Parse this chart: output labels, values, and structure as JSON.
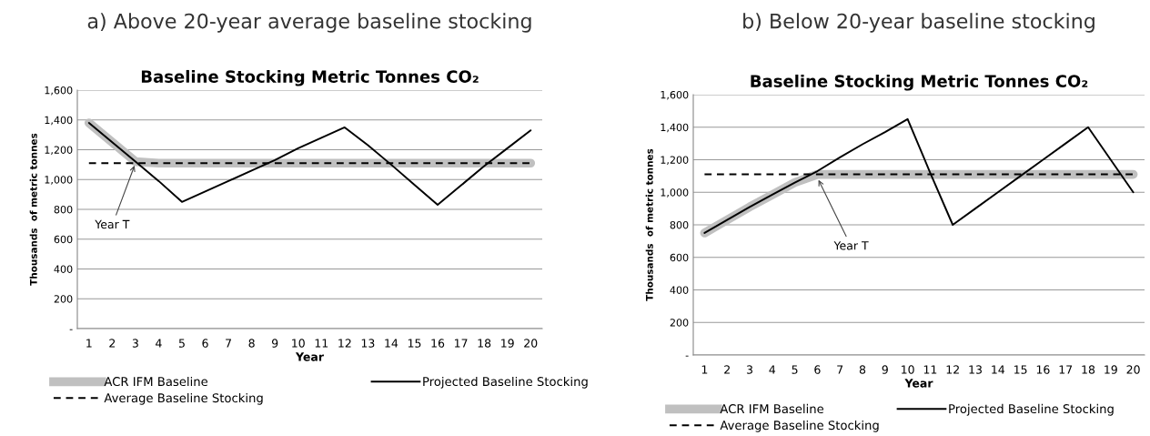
{
  "chart_data": [
    {
      "type": "line",
      "title": "a) Above 20-year average baseline stocking",
      "subtitle": "Baseline Stocking Metric Tonnes CO₂",
      "xlabel": "Year",
      "ylabel": "Thousands  of metric tonnes",
      "categories": [
        "1",
        "2",
        "3",
        "4",
        "5",
        "6",
        "7",
        "8",
        "9",
        "10",
        "11",
        "12",
        "13",
        "14",
        "15",
        "16",
        "17",
        "18",
        "19",
        "20"
      ],
      "series": [
        {
          "name": "ACR IFM Baseline",
          "color": "#c0c0c0",
          "line_style": "solid",
          "values": [
            1380,
            1250,
            1120,
            1110,
            1110,
            1110,
            1110,
            1110,
            1110,
            1110,
            1110,
            1110,
            1110,
            1110,
            1110,
            1110,
            1110,
            1110,
            1110,
            1110
          ]
        },
        {
          "name": "Projected Baseline Stocking",
          "color": "#000000",
          "line_style": "solid",
          "values": [
            1380,
            1250,
            1120,
            990,
            850,
            920,
            990,
            1060,
            1130,
            1210,
            1280,
            1350,
            1230,
            1100,
            965,
            830,
            960,
            1090,
            1210,
            1330
          ]
        },
        {
          "name": "Average Baseline Stocking",
          "color": "#000000",
          "line_style": "dashed",
          "values": [
            1110,
            1110,
            1110,
            1110,
            1110,
            1110,
            1110,
            1110,
            1110,
            1110,
            1110,
            1110,
            1110,
            1110,
            1110,
            1110,
            1110,
            1110,
            1110,
            1110
          ]
        }
      ],
      "ylim": [
        0,
        1600
      ],
      "yticks": [
        {
          "value": 0,
          "label": "-"
        },
        200,
        400,
        600,
        800,
        {
          "value": 1000,
          "label": "1,000"
        },
        {
          "value": 1200,
          "label": "1,200"
        },
        {
          "value": 1400,
          "label": "1,400"
        },
        {
          "value": 1600,
          "label": "1,600"
        }
      ],
      "grid": "y",
      "legend": "bottom",
      "marker": "none",
      "annotations": [
        {
          "text": "Year T",
          "x": "3",
          "y": 1110
        }
      ]
    },
    {
      "type": "line",
      "title": "b) Below 20-year baseline stocking",
      "subtitle": "Baseline Stocking Metric Tonnes CO₂",
      "xlabel": "Year",
      "ylabel": "Thousands  of metric tonnes",
      "categories": [
        "1",
        "2",
        "3",
        "4",
        "5",
        "6",
        "7",
        "8",
        "9",
        "10",
        "11",
        "12",
        "13",
        "14",
        "15",
        "16",
        "17",
        "18",
        "19",
        "20"
      ],
      "series": [
        {
          "name": "ACR IFM Baseline",
          "color": "#c0c0c0",
          "line_style": "solid",
          "values": [
            750,
            830,
            910,
            985,
            1060,
            1110,
            1110,
            1110,
            1110,
            1110,
            1110,
            1110,
            1110,
            1110,
            1110,
            1110,
            1110,
            1110,
            1110,
            1110
          ]
        },
        {
          "name": "Projected Baseline Stocking",
          "color": "#000000",
          "line_style": "solid",
          "values": [
            750,
            830,
            910,
            985,
            1060,
            1130,
            1215,
            1295,
            1370,
            1450,
            1120,
            800,
            900,
            1000,
            1100,
            1200,
            1300,
            1400,
            1200,
            1000
          ]
        },
        {
          "name": "Average Baseline Stocking",
          "color": "#000000",
          "line_style": "dashed",
          "values": [
            1110,
            1110,
            1110,
            1110,
            1110,
            1110,
            1110,
            1110,
            1110,
            1110,
            1110,
            1110,
            1110,
            1110,
            1110,
            1110,
            1110,
            1110,
            1110,
            1110
          ]
        }
      ],
      "ylim": [
        0,
        1600
      ],
      "yticks": [
        {
          "value": 0,
          "label": "-"
        },
        200,
        400,
        600,
        800,
        {
          "value": 1000,
          "label": "1,000"
        },
        {
          "value": 1200,
          "label": "1,200"
        },
        {
          "value": 1400,
          "label": "1,400"
        },
        {
          "value": 1600,
          "label": "1,600"
        }
      ],
      "grid": "y",
      "legend": "bottom",
      "marker": "none",
      "annotations": [
        {
          "text": "Year T",
          "x": "6",
          "y": 1090
        }
      ]
    }
  ]
}
